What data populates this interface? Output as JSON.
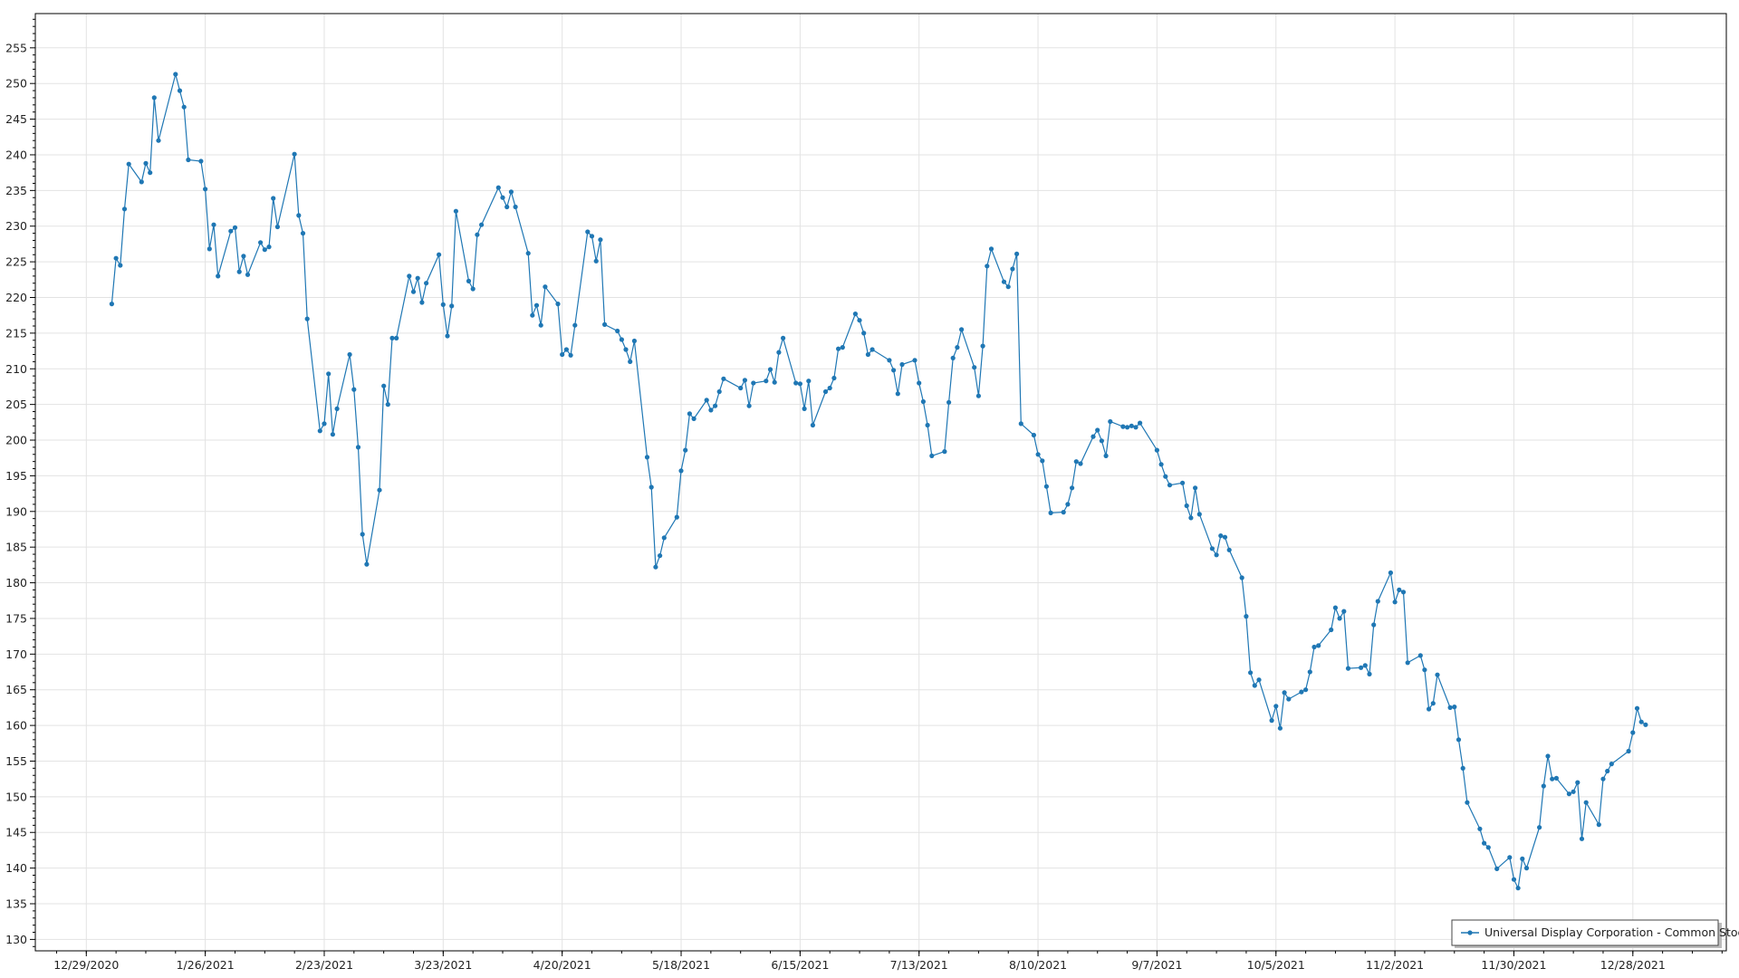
{
  "chart_data": {
    "type": "line",
    "title": "",
    "xlabel": "",
    "ylabel": "",
    "xlim": [
      "2020-12-17",
      "2022-01-19"
    ],
    "ylim": [
      128.4,
      259.8
    ],
    "grid": true,
    "legend_position": "bottom-right",
    "series_color": "#1f77b4",
    "x_ticks": [
      "12/29/2020",
      "1/26/2021",
      "2/23/2021",
      "3/23/2021",
      "4/20/2021",
      "5/18/2021",
      "6/15/2021",
      "7/13/2021",
      "8/10/2021",
      "9/7/2021",
      "10/5/2021",
      "11/2/2021",
      "11/30/2021",
      "12/28/2021"
    ],
    "y_ticks": [
      "130",
      "135",
      "140",
      "145",
      "150",
      "155",
      "160",
      "165",
      "170",
      "175",
      "180",
      "185",
      "190",
      "195",
      "200",
      "205",
      "210",
      "215",
      "220",
      "225",
      "230",
      "235",
      "240",
      "245",
      "250",
      "255"
    ],
    "series": [
      {
        "name": "Universal Display Corporation - Common Stock",
        "points": [
          [
            "2021-01-04",
            219.1
          ],
          [
            "2021-01-05",
            225.5
          ],
          [
            "2021-01-06",
            224.5
          ],
          [
            "2021-01-07",
            232.4
          ],
          [
            "2021-01-08",
            238.7
          ],
          [
            "2021-01-11",
            236.2
          ],
          [
            "2021-01-12",
            238.8
          ],
          [
            "2021-01-13",
            237.5
          ],
          [
            "2021-01-14",
            248.0
          ],
          [
            "2021-01-15",
            242.0
          ],
          [
            "2021-01-19",
            251.3
          ],
          [
            "2021-01-20",
            249.0
          ],
          [
            "2021-01-21",
            246.7
          ],
          [
            "2021-01-22",
            239.3
          ],
          [
            "2021-01-25",
            239.1
          ],
          [
            "2021-01-26",
            235.2
          ],
          [
            "2021-01-27",
            226.8
          ],
          [
            "2021-01-28",
            230.2
          ],
          [
            "2021-01-29",
            223.0
          ],
          [
            "2021-02-01",
            229.3
          ],
          [
            "2021-02-02",
            229.8
          ],
          [
            "2021-02-03",
            223.6
          ],
          [
            "2021-02-04",
            225.8
          ],
          [
            "2021-02-05",
            223.2
          ],
          [
            "2021-02-08",
            227.7
          ],
          [
            "2021-02-09",
            226.7
          ],
          [
            "2021-02-10",
            227.1
          ],
          [
            "2021-02-11",
            233.9
          ],
          [
            "2021-02-12",
            229.9
          ],
          [
            "2021-02-16",
            240.1
          ],
          [
            "2021-02-17",
            231.5
          ],
          [
            "2021-02-18",
            229.0
          ],
          [
            "2021-02-19",
            217.0
          ],
          [
            "2021-02-22",
            201.3
          ],
          [
            "2021-02-23",
            202.3
          ],
          [
            "2021-02-24",
            209.3
          ],
          [
            "2021-02-25",
            200.8
          ],
          [
            "2021-02-26",
            204.4
          ],
          [
            "2021-03-01",
            212.0
          ],
          [
            "2021-03-02",
            207.1
          ],
          [
            "2021-03-03",
            199.0
          ],
          [
            "2021-03-04",
            186.8
          ],
          [
            "2021-03-05",
            182.6
          ],
          [
            "2021-03-08",
            193.0
          ],
          [
            "2021-03-09",
            207.6
          ],
          [
            "2021-03-10",
            205.0
          ],
          [
            "2021-03-11",
            214.3
          ],
          [
            "2021-03-12",
            214.3
          ],
          [
            "2021-03-15",
            223.0
          ],
          [
            "2021-03-16",
            220.8
          ],
          [
            "2021-03-17",
            222.7
          ],
          [
            "2021-03-18",
            219.3
          ],
          [
            "2021-03-19",
            222.0
          ],
          [
            "2021-03-22",
            226.0
          ],
          [
            "2021-03-23",
            219.0
          ],
          [
            "2021-03-24",
            214.6
          ],
          [
            "2021-03-25",
            218.8
          ],
          [
            "2021-03-26",
            232.1
          ],
          [
            "2021-03-29",
            222.3
          ],
          [
            "2021-03-30",
            221.2
          ],
          [
            "2021-03-31",
            228.8
          ],
          [
            "2021-04-01",
            230.2
          ],
          [
            "2021-04-05",
            235.4
          ],
          [
            "2021-04-06",
            234.0
          ],
          [
            "2021-04-07",
            232.7
          ],
          [
            "2021-04-08",
            234.8
          ],
          [
            "2021-04-09",
            232.7
          ],
          [
            "2021-04-12",
            226.2
          ],
          [
            "2021-04-13",
            217.5
          ],
          [
            "2021-04-14",
            218.9
          ],
          [
            "2021-04-15",
            216.1
          ],
          [
            "2021-04-16",
            221.5
          ],
          [
            "2021-04-19",
            219.1
          ],
          [
            "2021-04-20",
            212.0
          ],
          [
            "2021-04-21",
            212.7
          ],
          [
            "2021-04-22",
            211.9
          ],
          [
            "2021-04-23",
            216.1
          ],
          [
            "2021-04-26",
            229.2
          ],
          [
            "2021-04-27",
            228.6
          ],
          [
            "2021-04-28",
            225.1
          ],
          [
            "2021-04-29",
            228.1
          ],
          [
            "2021-04-30",
            216.2
          ],
          [
            "2021-05-03",
            215.3
          ],
          [
            "2021-05-04",
            214.1
          ],
          [
            "2021-05-05",
            212.7
          ],
          [
            "2021-05-06",
            211.0
          ],
          [
            "2021-05-07",
            213.9
          ],
          [
            "2021-05-10",
            197.6
          ],
          [
            "2021-05-11",
            193.4
          ],
          [
            "2021-05-12",
            182.2
          ],
          [
            "2021-05-13",
            183.8
          ],
          [
            "2021-05-14",
            186.3
          ],
          [
            "2021-05-17",
            189.2
          ],
          [
            "2021-05-18",
            195.7
          ],
          [
            "2021-05-19",
            198.6
          ],
          [
            "2021-05-20",
            203.7
          ],
          [
            "2021-05-21",
            203.0
          ],
          [
            "2021-05-24",
            205.6
          ],
          [
            "2021-05-25",
            204.2
          ],
          [
            "2021-05-26",
            204.8
          ],
          [
            "2021-05-27",
            206.8
          ],
          [
            "2021-05-28",
            208.6
          ],
          [
            "2021-06-01",
            207.3
          ],
          [
            "2021-06-02",
            208.4
          ],
          [
            "2021-06-03",
            204.8
          ],
          [
            "2021-06-04",
            208.0
          ],
          [
            "2021-06-07",
            208.3
          ],
          [
            "2021-06-08",
            209.9
          ],
          [
            "2021-06-09",
            208.1
          ],
          [
            "2021-06-10",
            212.3
          ],
          [
            "2021-06-11",
            214.3
          ],
          [
            "2021-06-14",
            208.0
          ],
          [
            "2021-06-15",
            207.9
          ],
          [
            "2021-06-16",
            204.4
          ],
          [
            "2021-06-17",
            208.3
          ],
          [
            "2021-06-18",
            202.1
          ],
          [
            "2021-06-21",
            206.8
          ],
          [
            "2021-06-22",
            207.3
          ],
          [
            "2021-06-23",
            208.7
          ],
          [
            "2021-06-24",
            212.8
          ],
          [
            "2021-06-25",
            213.0
          ],
          [
            "2021-06-28",
            217.7
          ],
          [
            "2021-06-29",
            216.8
          ],
          [
            "2021-06-30",
            215.0
          ],
          [
            "2021-07-01",
            212.0
          ],
          [
            "2021-07-02",
            212.7
          ],
          [
            "2021-07-06",
            211.2
          ],
          [
            "2021-07-07",
            209.8
          ],
          [
            "2021-07-08",
            206.5
          ],
          [
            "2021-07-09",
            210.6
          ],
          [
            "2021-07-12",
            211.2
          ],
          [
            "2021-07-13",
            208.0
          ],
          [
            "2021-07-14",
            205.4
          ],
          [
            "2021-07-15",
            202.1
          ],
          [
            "2021-07-16",
            197.8
          ],
          [
            "2021-07-19",
            198.4
          ],
          [
            "2021-07-20",
            205.3
          ],
          [
            "2021-07-21",
            211.5
          ],
          [
            "2021-07-22",
            213.0
          ],
          [
            "2021-07-23",
            215.5
          ],
          [
            "2021-07-26",
            210.2
          ],
          [
            "2021-07-27",
            206.2
          ],
          [
            "2021-07-28",
            213.2
          ],
          [
            "2021-07-29",
            224.4
          ],
          [
            "2021-07-30",
            226.8
          ],
          [
            "2021-08-02",
            222.2
          ],
          [
            "2021-08-03",
            221.5
          ],
          [
            "2021-08-04",
            224.0
          ],
          [
            "2021-08-05",
            226.1
          ],
          [
            "2021-08-06",
            202.3
          ],
          [
            "2021-08-09",
            200.7
          ],
          [
            "2021-08-10",
            198.0
          ],
          [
            "2021-08-11",
            197.1
          ],
          [
            "2021-08-12",
            193.5
          ],
          [
            "2021-08-13",
            189.8
          ],
          [
            "2021-08-16",
            189.9
          ],
          [
            "2021-08-17",
            191.0
          ],
          [
            "2021-08-18",
            193.3
          ],
          [
            "2021-08-19",
            197.0
          ],
          [
            "2021-08-20",
            196.7
          ],
          [
            "2021-08-23",
            200.5
          ],
          [
            "2021-08-24",
            201.4
          ],
          [
            "2021-08-25",
            199.9
          ],
          [
            "2021-08-26",
            197.8
          ],
          [
            "2021-08-27",
            202.6
          ],
          [
            "2021-08-30",
            201.9
          ],
          [
            "2021-08-31",
            201.8
          ],
          [
            "2021-09-01",
            202.0
          ],
          [
            "2021-09-02",
            201.8
          ],
          [
            "2021-09-03",
            202.4
          ],
          [
            "2021-09-07",
            198.6
          ],
          [
            "2021-09-08",
            196.6
          ],
          [
            "2021-09-09",
            194.9
          ],
          [
            "2021-09-10",
            193.7
          ],
          [
            "2021-09-13",
            194.0
          ],
          [
            "2021-09-14",
            190.8
          ],
          [
            "2021-09-15",
            189.1
          ],
          [
            "2021-09-16",
            193.3
          ],
          [
            "2021-09-17",
            189.6
          ],
          [
            "2021-09-20",
            184.8
          ],
          [
            "2021-09-21",
            183.9
          ],
          [
            "2021-09-22",
            186.6
          ],
          [
            "2021-09-23",
            186.4
          ],
          [
            "2021-09-24",
            184.6
          ],
          [
            "2021-09-27",
            180.7
          ],
          [
            "2021-09-28",
            175.3
          ],
          [
            "2021-09-29",
            167.4
          ],
          [
            "2021-09-30",
            165.6
          ],
          [
            "2021-10-01",
            166.4
          ],
          [
            "2021-10-04",
            160.7
          ],
          [
            "2021-10-05",
            162.7
          ],
          [
            "2021-10-06",
            159.6
          ],
          [
            "2021-10-07",
            164.6
          ],
          [
            "2021-10-08",
            163.7
          ],
          [
            "2021-10-11",
            164.7
          ],
          [
            "2021-10-12",
            165.0
          ],
          [
            "2021-10-13",
            167.5
          ],
          [
            "2021-10-14",
            171.0
          ],
          [
            "2021-10-15",
            171.2
          ],
          [
            "2021-10-18",
            173.4
          ],
          [
            "2021-10-19",
            176.5
          ],
          [
            "2021-10-20",
            175.0
          ],
          [
            "2021-10-21",
            176.0
          ],
          [
            "2021-10-22",
            168.0
          ],
          [
            "2021-10-25",
            168.1
          ],
          [
            "2021-10-26",
            168.4
          ],
          [
            "2021-10-27",
            167.2
          ],
          [
            "2021-10-28",
            174.1
          ],
          [
            "2021-10-29",
            177.4
          ],
          [
            "2021-11-01",
            181.4
          ],
          [
            "2021-11-02",
            177.3
          ],
          [
            "2021-11-03",
            179.0
          ],
          [
            "2021-11-04",
            178.7
          ],
          [
            "2021-11-05",
            168.8
          ],
          [
            "2021-11-08",
            169.8
          ],
          [
            "2021-11-09",
            167.8
          ],
          [
            "2021-11-10",
            162.3
          ],
          [
            "2021-11-11",
            163.1
          ],
          [
            "2021-11-12",
            167.1
          ],
          [
            "2021-11-15",
            162.5
          ],
          [
            "2021-11-16",
            162.6
          ],
          [
            "2021-11-17",
            158.0
          ],
          [
            "2021-11-18",
            154.0
          ],
          [
            "2021-11-19",
            149.2
          ],
          [
            "2021-11-22",
            145.5
          ],
          [
            "2021-11-23",
            143.5
          ],
          [
            "2021-11-24",
            142.9
          ],
          [
            "2021-11-26",
            139.9
          ],
          [
            "2021-11-29",
            141.5
          ],
          [
            "2021-11-30",
            138.4
          ],
          [
            "2021-12-01",
            137.2
          ],
          [
            "2021-12-02",
            141.3
          ],
          [
            "2021-12-03",
            140.0
          ],
          [
            "2021-12-06",
            145.7
          ],
          [
            "2021-12-07",
            151.5
          ],
          [
            "2021-12-08",
            155.7
          ],
          [
            "2021-12-09",
            152.5
          ],
          [
            "2021-12-10",
            152.6
          ],
          [
            "2021-12-13",
            150.4
          ],
          [
            "2021-12-14",
            150.7
          ],
          [
            "2021-12-15",
            152.0
          ],
          [
            "2021-12-16",
            144.1
          ],
          [
            "2021-12-17",
            149.2
          ],
          [
            "2021-12-20",
            146.1
          ],
          [
            "2021-12-21",
            152.5
          ],
          [
            "2021-12-22",
            153.6
          ],
          [
            "2021-12-23",
            154.6
          ],
          [
            "2021-12-27",
            156.4
          ],
          [
            "2021-12-28",
            159.0
          ],
          [
            "2021-12-29",
            162.4
          ],
          [
            "2021-12-30",
            160.5
          ],
          [
            "2021-12-31",
            160.1
          ]
        ]
      }
    ]
  }
}
